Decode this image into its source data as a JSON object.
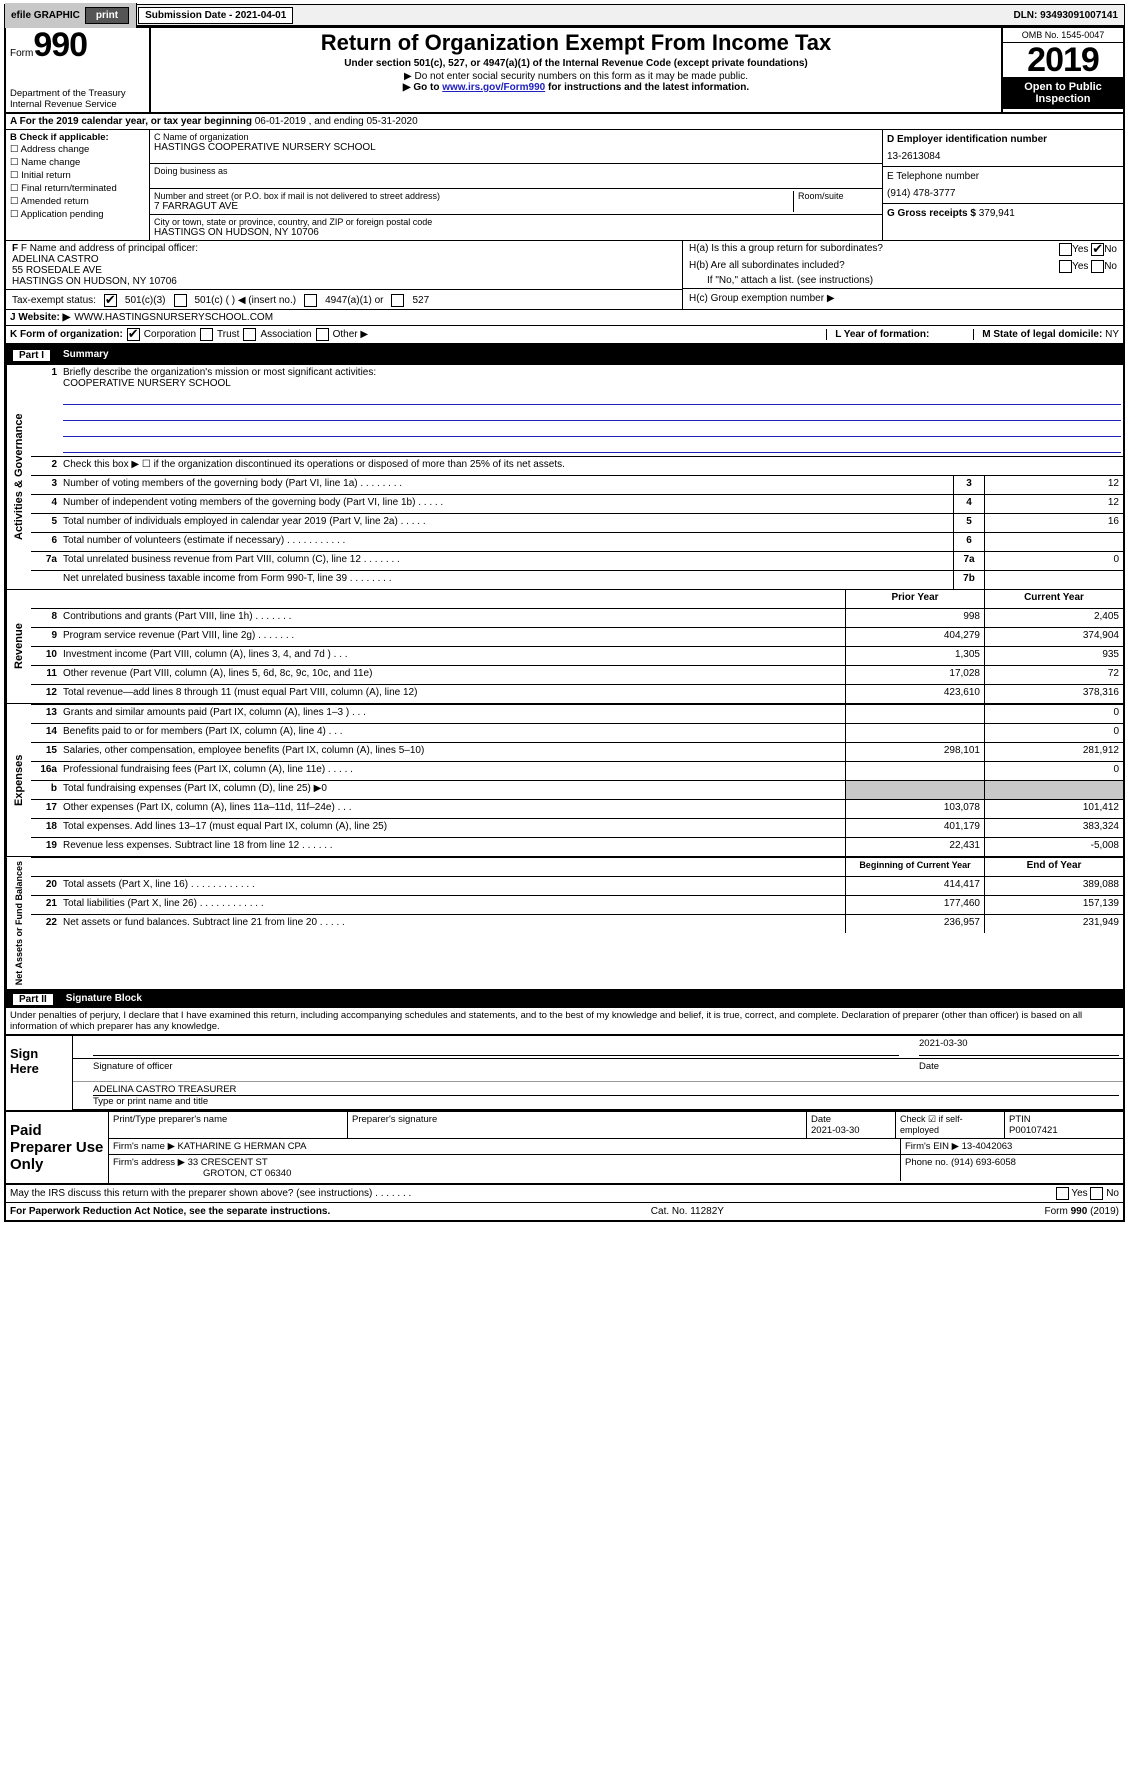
{
  "topbar": {
    "efile_label": "efile GRAPHIC",
    "print_btn": "print",
    "submission_label": "Submission Date - 2021-04-01",
    "dln": "DLN: 93493091007141"
  },
  "header": {
    "form_word": "Form",
    "form_number": "990",
    "dept": "Department of the Treasury",
    "irs": "Internal Revenue Service",
    "title": "Return of Organization Exempt From Income Tax",
    "sub1": "Under section 501(c), 527, or 4947(a)(1) of the Internal Revenue Code (except private foundations)",
    "sub2": "▶ Do not enter social security numbers on this form as it may be made public.",
    "sub3_pre": "▶ Go to ",
    "sub3_link": "www.irs.gov/Form990",
    "sub3_post": " for instructions and the latest information.",
    "omb": "OMB No. 1545-0047",
    "year": "2019",
    "inspect": "Open to Public Inspection"
  },
  "lineA": {
    "text_pre": "A For the 2019 calendar year, or tax year beginning ",
    "begin": "06-01-2019",
    "mid": " , and ending ",
    "end": "05-31-2020"
  },
  "boxB": {
    "title": "B Check if applicable:",
    "opts": [
      "Address change",
      "Name change",
      "Initial return",
      "Final return/terminated",
      "Amended return",
      "Application pending"
    ]
  },
  "boxC": {
    "label": "C Name of organization",
    "orgname": "HASTINGS COOPERATIVE NURSERY SCHOOL",
    "dba_label": "Doing business as",
    "street_label": "Number and street (or P.O. box if mail is not delivered to street address)",
    "room_label": "Room/suite",
    "street": "7 FARRAGUT AVE",
    "city_label": "City or town, state or province, country, and ZIP or foreign postal code",
    "city": "HASTINGS ON HUDSON, NY  10706"
  },
  "boxD": {
    "label": "D Employer identification number",
    "val": "13-2613084"
  },
  "boxE": {
    "label": "E Telephone number",
    "val": "(914) 478-3777"
  },
  "boxG": {
    "label": "G Gross receipts $",
    "val": "379,941"
  },
  "boxF": {
    "label": "F Name and address of principal officer:",
    "name": "ADELINA CASTRO",
    "addr1": "55 ROSEDALE AVE",
    "addr2": "HASTINGS ON HUDSON, NY  10706"
  },
  "boxH": {
    "ha": "H(a)  Is this a group return for subordinates?",
    "hb": "H(b)  Are all subordinates included?",
    "hb_note": "If \"No,\" attach a list. (see instructions)",
    "hc": "H(c)  Group exemption number ▶",
    "yes": "Yes",
    "no": "No"
  },
  "taxexempt": {
    "label": "Tax-exempt status:",
    "c3": "501(c)(3)",
    "c_other": "501(c) (   ) ◀ (insert no.)",
    "a1": "4947(a)(1) or",
    "s527": "527"
  },
  "website": {
    "label": "J   Website: ▶",
    "val": "WWW.HASTINGSNURSERYSCHOOL.COM"
  },
  "lineK": {
    "label": "K Form of organization:",
    "corp": "Corporation",
    "trust": "Trust",
    "assoc": "Association",
    "other": "Other ▶"
  },
  "lineL": {
    "label": "L Year of formation:"
  },
  "lineM": {
    "label": "M State of legal domicile:",
    "val": "NY"
  },
  "part1": {
    "num": "Part I",
    "title": "Summary"
  },
  "p1_q1": {
    "label": "Briefly describe the organization's mission or most significant activities:",
    "val": "COOPERATIVE NURSERY SCHOOL"
  },
  "p1_q2": "Check this box ▶ ☐ if the organization discontinued its operations or disposed of more than 25% of its net assets.",
  "p1_rows_a": [
    {
      "n": "3",
      "t": "Number of voting members of the governing body (Part VI, line 1a)  .   .   .   .   .   .   .   .",
      "nb": "3",
      "v": "12"
    },
    {
      "n": "4",
      "t": "Number of independent voting members of the governing body (Part VI, line 1b)   .   .   .   .   .",
      "nb": "4",
      "v": "12"
    },
    {
      "n": "5",
      "t": "Total number of individuals employed in calendar year 2019 (Part V, line 2a)    .   .   .   .   .",
      "nb": "5",
      "v": "16"
    },
    {
      "n": "6",
      "t": "Total number of volunteers (estimate if necessary)    .   .   .   .   .   .   .   .   .   .   .",
      "nb": "6",
      "v": ""
    },
    {
      "n": "7a",
      "t": "Total unrelated business revenue from Part VIII, column (C), line 12   .   .   .   .   .   .   .",
      "nb": "7a",
      "v": "0"
    },
    {
      "n": "",
      "t": "Net unrelated business taxable income from Form 990-T, line 39   .   .   .   .   .   .   .   .",
      "nb": "7b",
      "v": ""
    }
  ],
  "col_hdr": {
    "prior": "Prior Year",
    "current": "Current Year",
    "boy": "Beginning of Current Year",
    "eoy": "End of Year"
  },
  "revenue": [
    {
      "n": "8",
      "t": "Contributions and grants (Part VIII, line 1h)   .   .   .   .   .   .   .",
      "p": "998",
      "c": "2,405"
    },
    {
      "n": "9",
      "t": "Program service revenue (Part VIII, line 2g)   .   .   .   .   .   .   .",
      "p": "404,279",
      "c": "374,904"
    },
    {
      "n": "10",
      "t": "Investment income (Part VIII, column (A), lines 3, 4, and 7d )   .   .   .",
      "p": "1,305",
      "c": "935"
    },
    {
      "n": "11",
      "t": "Other revenue (Part VIII, column (A), lines 5, 6d, 8c, 9c, 10c, and 11e)",
      "p": "17,028",
      "c": "72"
    },
    {
      "n": "12",
      "t": "Total revenue—add lines 8 through 11 (must equal Part VIII, column (A), line 12)",
      "p": "423,610",
      "c": "378,316"
    }
  ],
  "expenses": [
    {
      "n": "13",
      "t": "Grants and similar amounts paid (Part IX, column (A), lines 1–3 )   .   .   .",
      "p": "",
      "c": "0"
    },
    {
      "n": "14",
      "t": "Benefits paid to or for members (Part IX, column (A), line 4)   .   .   .",
      "p": "",
      "c": "0"
    },
    {
      "n": "15",
      "t": "Salaries, other compensation, employee benefits (Part IX, column (A), lines 5–10)",
      "p": "298,101",
      "c": "281,912"
    },
    {
      "n": "16a",
      "t": "Professional fundraising fees (Part IX, column (A), line 11e)   .   .   .   .   .",
      "p": "",
      "c": "0"
    },
    {
      "n": "b",
      "t": "Total fundraising expenses (Part IX, column (D), line 25) ▶0",
      "p": "__grey__",
      "c": "__grey__"
    },
    {
      "n": "17",
      "t": "Other expenses (Part IX, column (A), lines 11a–11d, 11f–24e)   .   .   .",
      "p": "103,078",
      "c": "101,412"
    },
    {
      "n": "18",
      "t": "Total expenses. Add lines 13–17 (must equal Part IX, column (A), line 25)",
      "p": "401,179",
      "c": "383,324"
    },
    {
      "n": "19",
      "t": "Revenue less expenses. Subtract line 18 from line 12   .   .   .   .   .   .",
      "p": "22,431",
      "c": "-5,008"
    }
  ],
  "netassets": [
    {
      "n": "20",
      "t": "Total assets (Part X, line 16)   .   .   .   .   .   .   .   .   .   .   .   .",
      "p": "414,417",
      "c": "389,088"
    },
    {
      "n": "21",
      "t": "Total liabilities (Part X, line 26)  .   .   .   .   .   .   .   .   .   .   .   .",
      "p": "177,460",
      "c": "157,139"
    },
    {
      "n": "22",
      "t": "Net assets or fund balances. Subtract line 21 from line 20   .   .   .   .   .",
      "p": "236,957",
      "c": "231,949"
    }
  ],
  "vtabs": {
    "gov": "Activities & Governance",
    "rev": "Revenue",
    "exp": "Expenses",
    "net": "Net Assets or Fund Balances"
  },
  "part2": {
    "num": "Part II",
    "title": "Signature Block"
  },
  "perjury": "Under penalties of perjury, I declare that I have examined this return, including accompanying schedules and statements, and to the best of my knowledge and belief, it is true, correct, and complete. Declaration of preparer (other than officer) is based on all information of which preparer has any knowledge.",
  "sign": {
    "here": "Sign Here",
    "sig_officer": "Signature of officer",
    "date": "2021-03-30",
    "date_lbl": "Date",
    "name": "ADELINA CASTRO  TREASURER",
    "name_lbl": "Type or print name and title"
  },
  "paid": {
    "label": "Paid Preparer Use Only",
    "h1": "Print/Type preparer's name",
    "h2": "Preparer's signature",
    "h3": "Date",
    "h4": "Check ☑ if self-employed",
    "h5": "PTIN",
    "date": "2021-03-30",
    "ptin": "P00107421",
    "firm_lbl": "Firm's name    ▶",
    "firm": "KATHARINE G HERMAN CPA",
    "ein_lbl": "Firm's EIN ▶",
    "ein": "13-4042063",
    "addr_lbl": "Firm's address ▶",
    "addr1": "33 CRESCENT ST",
    "addr2": "GROTON, CT  06340",
    "phone_lbl": "Phone no.",
    "phone": "(914) 693-6058"
  },
  "discuss": {
    "q": "May the IRS discuss this return with the preparer shown above? (see instructions)    .    .    .    .    .    .    .",
    "yes": "Yes",
    "no": "No"
  },
  "footer": {
    "pra": "For Paperwork Reduction Act Notice, see the separate instructions.",
    "cat": "Cat. No. 11282Y",
    "form": "Form 990 (2019)"
  }
}
